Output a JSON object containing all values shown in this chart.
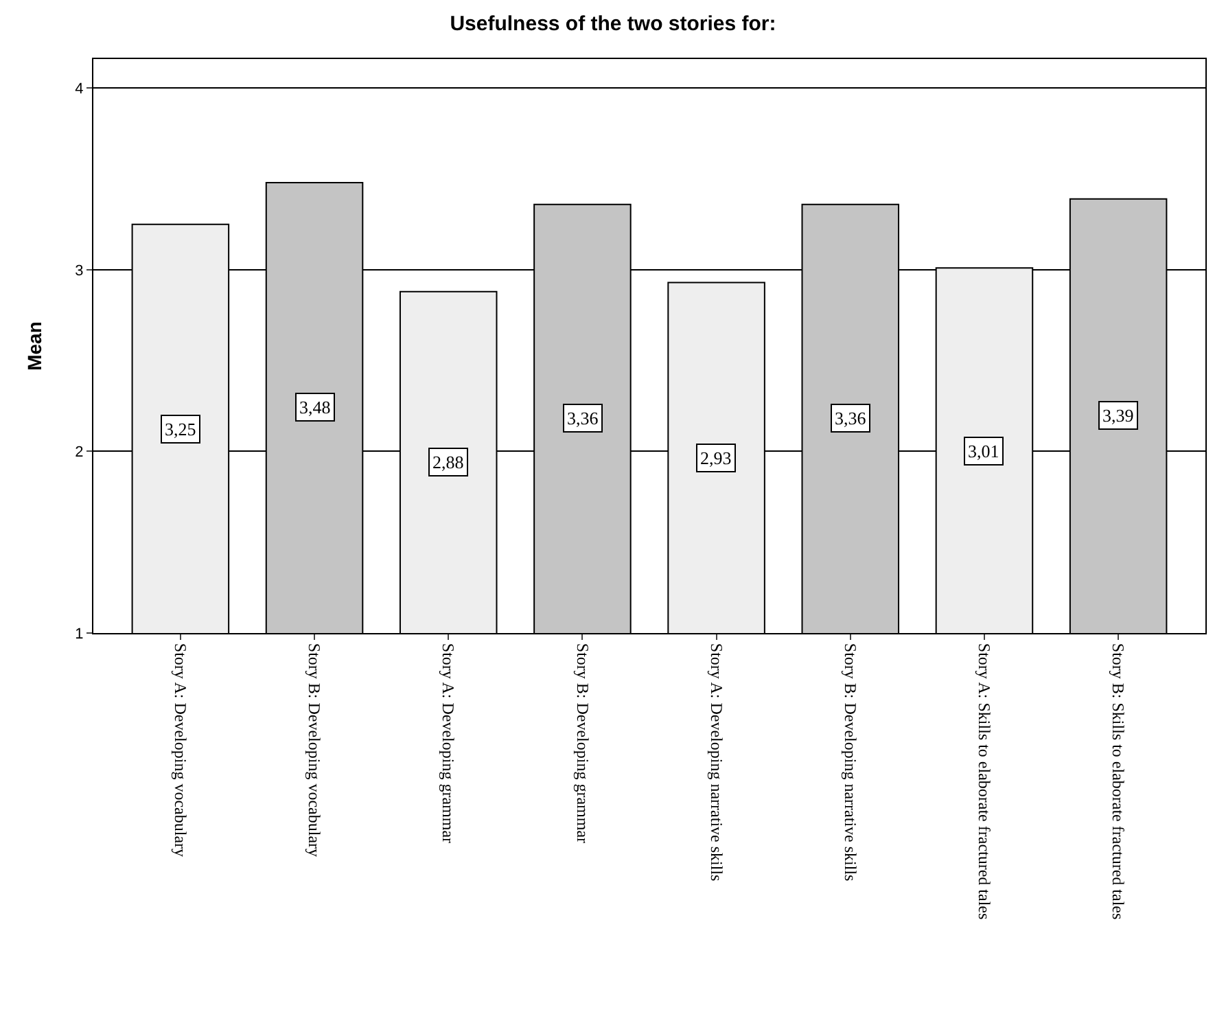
{
  "chart_data": {
    "type": "bar",
    "title": "Usefulness of the two stories for:",
    "ylabel": "Mean",
    "categories": [
      "Story A: Developing vocabulary",
      "Story B: Developing vocabulary",
      "Story A: Developing grammar",
      "Story B: Developing grammar",
      "Story A: Developing narrative skills",
      "Story B: Developing narrative skills",
      "Story A: Skills to elaborate fractured tales",
      "Story B: Skills to elaborate fractured tales"
    ],
    "values": [
      3.25,
      3.48,
      2.88,
      3.36,
      2.93,
      3.36,
      3.01,
      3.39
    ],
    "value_labels": [
      "3,25",
      "3,48",
      "2,88",
      "3,36",
      "2,93",
      "3,36",
      "3,01",
      "3,39"
    ],
    "colors": [
      "#eeeeee",
      "#c4c4c4",
      "#eeeeee",
      "#c4c4c4",
      "#eeeeee",
      "#c4c4c4",
      "#eeeeee",
      "#c4c4c4"
    ],
    "ylim": [
      1,
      4.16
    ],
    "yticks": [
      1,
      2,
      3,
      4
    ],
    "grid": "y",
    "legend": false
  }
}
